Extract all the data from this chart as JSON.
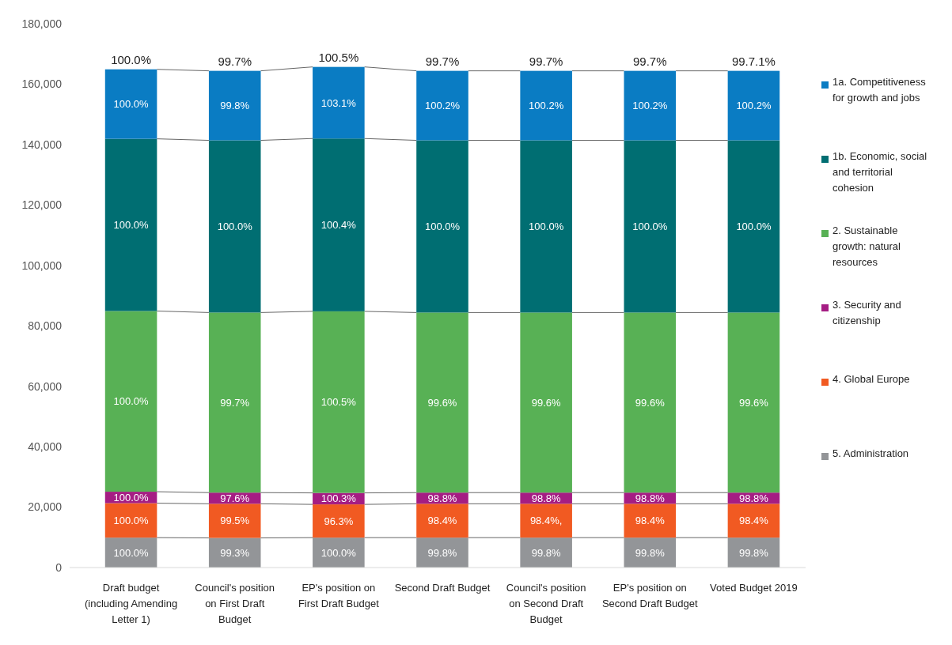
{
  "chart_data": {
    "type": "bar",
    "stacked": true,
    "categories": [
      "Draft budget (including Amending Letter 1)",
      "Council's position on First Draft Budget",
      "EP's position on First Draft Budget",
      "Second Draft Budget",
      "Council's position on Second Draft Budget",
      "EP's position on Second Draft Budget",
      "Voted Budget 2019"
    ],
    "series": [
      {
        "name": "5. Administration",
        "color": "#939598",
        "values": [
          9900,
          9800,
          9900,
          9900,
          9900,
          9900,
          9900
        ]
      },
      {
        "name": "4. Global Europe",
        "color": "#f15a22",
        "values": [
          11400,
          11300,
          11000,
          11200,
          11200,
          11200,
          11200
        ]
      },
      {
        "name": "3. Security and citizenship",
        "color": "#a51d83",
        "values": [
          3800,
          3700,
          3800,
          3700,
          3700,
          3700,
          3700
        ]
      },
      {
        "name": "2. Sustainable growth: natural resources",
        "color": "#58b155",
        "values": [
          59800,
          59600,
          60100,
          59600,
          59600,
          59600,
          59600
        ]
      },
      {
        "name": "1b. Economic, social and territorial cohesion",
        "color": "#006e72",
        "values": [
          57000,
          57000,
          57200,
          57000,
          57000,
          57000,
          57000
        ]
      },
      {
        "name": "1a. Competitiveness for growth and jobs",
        "color": "#0a7cc3",
        "values": [
          23000,
          23000,
          23700,
          23000,
          23000,
          23000,
          23000
        ]
      }
    ],
    "annotations": [
      {
        "text": "100.0%",
        "x": "Draft budget (including Amending Letter 1)",
        "y": 0
      },
      {
        "text": "100.0%",
        "x": "Draft budget (including Amending Letter 1)",
        "y": 9900
      },
      {
        "text": "100.0%",
        "x": "Draft budget (including Amending Letter 1)",
        "y": 21300
      },
      "100.0%",
      "100.0%",
      {
        "text": "100.0%",
        "x": "Draft budget (including Amending Letter 1)",
        "y": 141900
      },
      {
        "text": "100.0%",
        "x": "Draft budget (including Amending Letter 1)",
        "y": 164900
      },
      {
        "text": "99.3%",
        "x": "Council's position on First Draft Budget",
        "y": 0
      },
      {
        "text": "99.5%",
        "x": "Council's position on First Draft Budget",
        "y": 9800
      },
      {
        "text": "97.6%",
        "x": "Council's position on First Draft Budget",
        "y": 21100
      },
      "99.7%",
      "100.0%",
      {
        "text": "99.8%",
        "x": "Council's position on First Draft Budget",
        "y": 141400
      },
      {
        "text": "99.7%",
        "x": "Council's position on First Draft Budget",
        "y": 164400
      },
      {
        "text": "100.0%",
        "x": "EP's position on First Draft Budget",
        "y": 0
      },
      {
        "text": "96.3%",
        "x": "EP's position on First Draft Budget",
        "y": 9900
      },
      {
        "text": "100.3%",
        "x": "EP's position on First Draft Budget",
        "y": 20900
      },
      "100.5%",
      "100.4%",
      {
        "text": "103.1%",
        "x": "EP's position on First Draft Budget",
        "y": 142000
      },
      {
        "text": "100.5%",
        "x": "EP's position on First Draft Budget",
        "y": 165700
      },
      {
        "text": "99.8%",
        "x": "Second Draft Budget",
        "y": 0
      },
      {
        "text": "98.4%",
        "x": "Second Draft Budget",
        "y": 9900
      },
      {
        "text": "98.8%",
        "x": "Second Draft Budget",
        "y": 21100
      },
      "99.6%",
      "100.0%",
      {
        "text": "100.2%",
        "x": "Second Draft Budget",
        "y": 141400
      },
      {
        "text": "99.7%",
        "x": "Second Draft Budget",
        "y": 164400
      },
      {
        "text": "99.8%",
        "x": "Council's position on Second Draft Budget",
        "y": 0
      },
      {
        "text": "98.4%,",
        "x": "Council's position on Second Draft Budget",
        "y": 9900
      },
      {
        "text": "98.8%",
        "x": "Council's position on Second Draft Budget",
        "y": 21100
      },
      "99.6%",
      "100.0%",
      {
        "text": "100.2%",
        "x": "Council's position on Second Draft Budget",
        "y": 141400
      },
      {
        "text": "99.7%",
        "x": "Council's position on Second Draft Budget",
        "y": 164400
      },
      {
        "text": "99.8%",
        "x": "EP's position on Second Draft Budget",
        "y": 0
      },
      {
        "text": "98.4%",
        "x": "EP's position on Second Draft Budget",
        "y": 9900
      },
      {
        "text": "98.8%",
        "x": "EP's position on Second Draft Budget",
        "y": 21100
      },
      "99.6%",
      "100.0%",
      {
        "text": "100.2%",
        "x": "EP's position on Second Draft Budget",
        "y": 141400
      },
      {
        "text": "99.7%",
        "x": "EP's position on Second Draft Budget",
        "y": 164400
      },
      {
        "text": "99.8%",
        "x": "Voted Budget 2019",
        "y": 0
      },
      {
        "text": "98.4%",
        "x": "Voted Budget 2019",
        "y": 9900
      },
      {
        "text": "98.8%",
        "x": "Voted Budget 2019",
        "y": 21100
      },
      "99.6%",
      "100.0%",
      {
        "text": "100.2%",
        "x": "Voted Budget 2019",
        "y": 141400
      },
      {
        "text": "99.7.1%",
        "x": "Voted Budget 2019",
        "y": 164400
      }
    ],
    "ylim": [
      0,
      180000
    ],
    "yticks": [
      {
        "value": 0,
        "label": "0"
      },
      {
        "value": 20000,
        "label": "20,000"
      },
      {
        "value": 40000,
        "label": "40,000"
      },
      {
        "value": 60000,
        "label": "60,000"
      },
      {
        "value": 80000,
        "label": "80,000"
      },
      {
        "value": 100000,
        "label": "100,000"
      },
      {
        "value": 120000,
        "label": "120,000"
      },
      {
        "value": 140000,
        "label": "140,000"
      },
      {
        "value": 160000,
        "label": "160,000"
      },
      {
        "value": 180000,
        "label": "180,000"
      }
    ],
    "legend": "right"
  }
}
